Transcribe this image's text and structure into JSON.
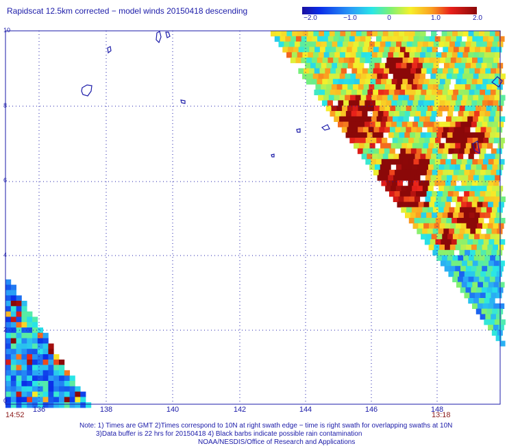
{
  "title": "Rapidscat 12.5km corrected − model winds 20150418 descending",
  "colorbar": {
    "labels": [
      "−2.0",
      "−1.0",
      "0",
      "1.0",
      "2.0"
    ],
    "min": -2.0,
    "max": 2.0
  },
  "y_axis": {
    "labels": [
      "10",
      "8",
      "6",
      "4",
      "2",
      "0"
    ]
  },
  "x_axis": {
    "labels": [
      "136",
      "138",
      "140",
      "142",
      "144",
      "146",
      "148"
    ]
  },
  "times": {
    "left": "14:52",
    "right": "13:18"
  },
  "notes": [
    "Note: 1) Times are GMT 2)Times correspond to 10N at right swath edge − time is right swath for overlapping swaths at 10N",
    "3)Data buffer is 22 hrs for 20150418 4) Black barbs indicate possible rain contamination",
    "NOAA/NESDIS/Office of Research and Applications"
  ]
}
